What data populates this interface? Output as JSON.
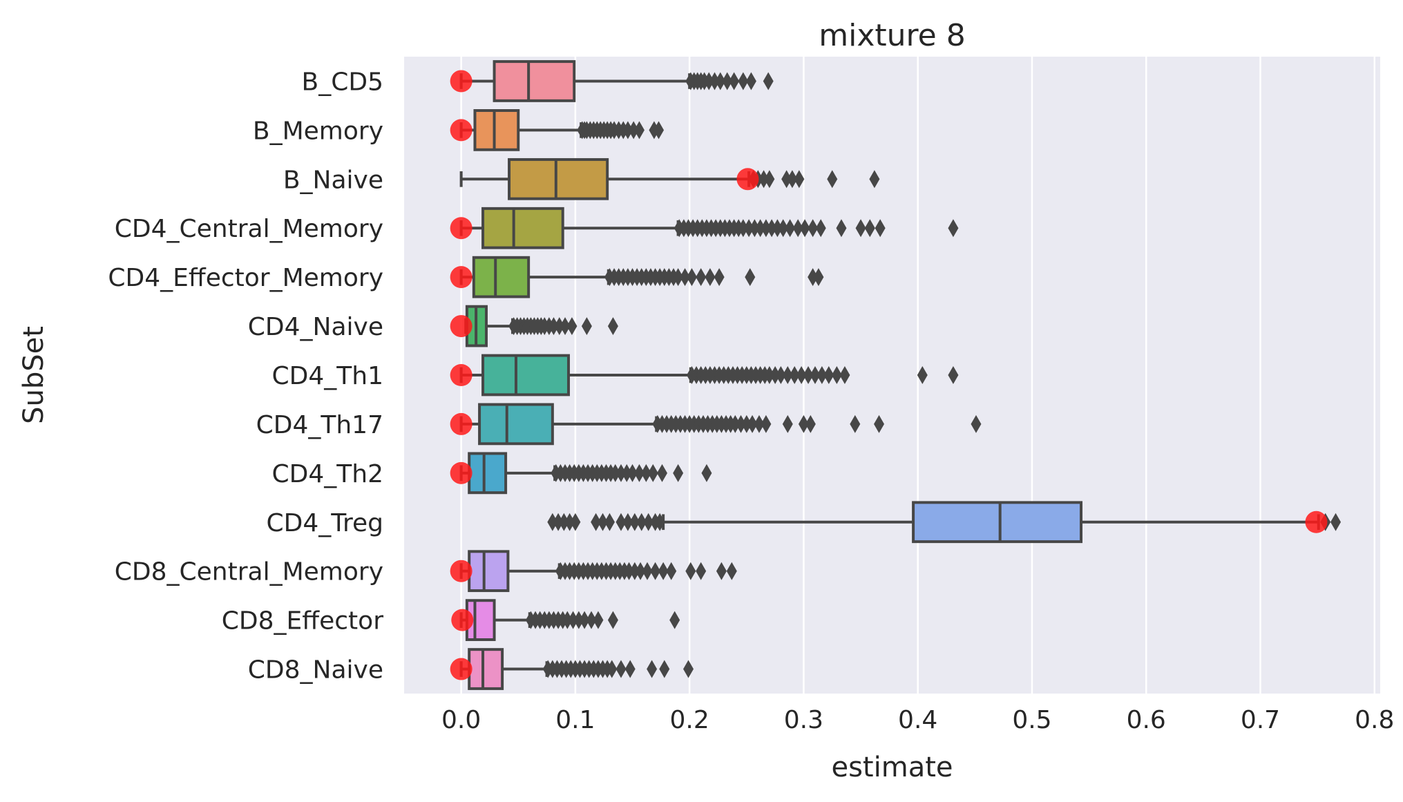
{
  "chart_data": {
    "type": "box",
    "orientation": "horizontal",
    "title": "mixture 8",
    "xlabel": "estimate",
    "ylabel": "SubSet",
    "xlim": [
      -0.05,
      0.805
    ],
    "xticks": [
      0.0,
      0.1,
      0.2,
      0.3,
      0.4,
      0.5,
      0.6,
      0.7,
      0.8
    ],
    "xtick_labels": [
      "0.0",
      "0.1",
      "0.2",
      "0.3",
      "0.4",
      "0.5",
      "0.6",
      "0.7",
      "0.8"
    ],
    "grid": true,
    "background": "#eaeaf2",
    "grid_color": "#ffffff",
    "line_color": "#474747",
    "marker_color": "#ff1a1a",
    "categories": [
      "B_CD5",
      "B_Memory",
      "B_Naive",
      "CD4_Central_Memory",
      "CD4_Effector_Memory",
      "CD4_Naive",
      "CD4_Th1",
      "CD4_Th17",
      "CD4_Th2",
      "CD4_Treg",
      "CD8_Central_Memory",
      "CD8_Effector",
      "CD8_Naive"
    ],
    "boxes": [
      {
        "category": "B_CD5",
        "color": "#f0909d",
        "whisker_low": 0.0,
        "q1": 0.029,
        "median": 0.059,
        "q3": 0.099,
        "whisker_high": 0.2,
        "outliers": [
          0.201,
          0.204,
          0.207,
          0.21,
          0.213,
          0.217,
          0.222,
          0.227,
          0.233,
          0.239,
          0.247,
          0.254,
          0.269
        ],
        "marker": 0.0
      },
      {
        "category": "B_Memory",
        "color": "#e8945b",
        "whisker_low": 0.0,
        "q1": 0.012,
        "median": 0.029,
        "q3": 0.05,
        "whisker_high": 0.105,
        "outliers": [
          0.106,
          0.108,
          0.11,
          0.113,
          0.116,
          0.119,
          0.122,
          0.125,
          0.128,
          0.131,
          0.134,
          0.138,
          0.142,
          0.146,
          0.151,
          0.156,
          0.169,
          0.173
        ],
        "marker": 0.0
      },
      {
        "category": "B_Naive",
        "color": "#c39b46",
        "whisker_low": 0.0,
        "q1": 0.042,
        "median": 0.083,
        "q3": 0.128,
        "whisker_high": 0.252,
        "outliers": [
          0.256,
          0.26,
          0.265,
          0.27,
          0.285,
          0.29,
          0.296,
          0.325,
          0.362
        ],
        "marker": 0.251
      },
      {
        "category": "CD4_Central_Memory",
        "color": "#a5a543",
        "whisker_low": 0.0,
        "q1": 0.019,
        "median": 0.046,
        "q3": 0.089,
        "whisker_high": 0.19,
        "outliers": [
          0.191,
          0.195,
          0.199,
          0.203,
          0.207,
          0.211,
          0.215,
          0.219,
          0.223,
          0.227,
          0.231,
          0.235,
          0.239,
          0.243,
          0.247,
          0.252,
          0.257,
          0.262,
          0.267,
          0.272,
          0.277,
          0.282,
          0.288,
          0.295,
          0.301,
          0.308,
          0.315,
          0.333,
          0.35,
          0.358,
          0.367,
          0.431
        ],
        "marker": 0.0
      },
      {
        "category": "CD4_Effector_Memory",
        "color": "#7cb24a",
        "whisker_low": 0.0,
        "q1": 0.011,
        "median": 0.03,
        "q3": 0.059,
        "whisker_high": 0.129,
        "outliers": [
          0.13,
          0.134,
          0.138,
          0.142,
          0.146,
          0.15,
          0.154,
          0.158,
          0.162,
          0.166,
          0.17,
          0.174,
          0.178,
          0.182,
          0.186,
          0.19,
          0.196,
          0.202,
          0.21,
          0.218,
          0.226,
          0.253,
          0.308,
          0.313
        ],
        "marker": 0.0
      },
      {
        "category": "CD4_Naive",
        "color": "#4bb46b",
        "whisker_low": 0.004,
        "q1": 0.005,
        "median": 0.013,
        "q3": 0.022,
        "whisker_high": 0.045,
        "outliers": [
          0.046,
          0.049,
          0.052,
          0.055,
          0.058,
          0.061,
          0.064,
          0.067,
          0.07,
          0.073,
          0.077,
          0.081,
          0.086,
          0.091,
          0.097,
          0.11,
          0.133
        ],
        "marker": 0.0
      },
      {
        "category": "CD4_Th1",
        "color": "#47b29a",
        "whisker_low": 0.0,
        "q1": 0.019,
        "median": 0.048,
        "q3": 0.094,
        "whisker_high": 0.201,
        "outliers": [
          0.202,
          0.206,
          0.21,
          0.214,
          0.218,
          0.222,
          0.226,
          0.23,
          0.234,
          0.238,
          0.242,
          0.246,
          0.25,
          0.254,
          0.258,
          0.262,
          0.266,
          0.27,
          0.275,
          0.28,
          0.286,
          0.292,
          0.298,
          0.304,
          0.31,
          0.316,
          0.322,
          0.329,
          0.336,
          0.404,
          0.431
        ],
        "marker": 0.0
      },
      {
        "category": "CD4_Th17",
        "color": "#4aafb5",
        "whisker_low": 0.0,
        "q1": 0.016,
        "median": 0.04,
        "q3": 0.08,
        "whisker_high": 0.171,
        "outliers": [
          0.172,
          0.176,
          0.18,
          0.184,
          0.188,
          0.192,
          0.196,
          0.2,
          0.204,
          0.208,
          0.212,
          0.216,
          0.22,
          0.224,
          0.228,
          0.232,
          0.236,
          0.24,
          0.245,
          0.25,
          0.255,
          0.261,
          0.267,
          0.286,
          0.3,
          0.306,
          0.345,
          0.366,
          0.451
        ],
        "marker": 0.0
      },
      {
        "category": "CD4_Th2",
        "color": "#4aa8cc",
        "whisker_low": 0.0,
        "q1": 0.007,
        "median": 0.02,
        "q3": 0.039,
        "whisker_high": 0.082,
        "outliers": [
          0.083,
          0.087,
          0.091,
          0.095,
          0.099,
          0.103,
          0.107,
          0.111,
          0.115,
          0.119,
          0.123,
          0.127,
          0.131,
          0.135,
          0.14,
          0.145,
          0.15,
          0.156,
          0.162,
          0.168,
          0.176,
          0.19,
          0.215
        ],
        "marker": 0.0
      },
      {
        "category": "CD4_Treg",
        "color": "#8aaae8",
        "whisker_low": 0.177,
        "q1": 0.396,
        "median": 0.472,
        "q3": 0.543,
        "whisker_high": 0.751,
        "outliers": [
          0.08,
          0.085,
          0.09,
          0.095,
          0.1,
          0.118,
          0.124,
          0.13,
          0.14,
          0.146,
          0.152,
          0.158,
          0.164,
          0.17,
          0.174,
          0.757,
          0.766
        ],
        "marker": 0.749
      },
      {
        "category": "CD8_Central_Memory",
        "color": "#bba3ef",
        "whisker_low": 0.0,
        "q1": 0.007,
        "median": 0.02,
        "q3": 0.041,
        "whisker_high": 0.086,
        "outliers": [
          0.087,
          0.091,
          0.095,
          0.099,
          0.103,
          0.107,
          0.111,
          0.115,
          0.119,
          0.123,
          0.127,
          0.131,
          0.135,
          0.139,
          0.143,
          0.147,
          0.152,
          0.157,
          0.163,
          0.17,
          0.177,
          0.184,
          0.201,
          0.21,
          0.228,
          0.237
        ],
        "marker": 0.0
      },
      {
        "category": "CD8_Effector",
        "color": "#e58ce6",
        "whisker_low": 0.0,
        "q1": 0.005,
        "median": 0.012,
        "q3": 0.029,
        "whisker_high": 0.06,
        "outliers": [
          0.061,
          0.065,
          0.069,
          0.073,
          0.077,
          0.081,
          0.085,
          0.089,
          0.093,
          0.098,
          0.103,
          0.108,
          0.114,
          0.12,
          0.133,
          0.187
        ],
        "marker": 0.001
      },
      {
        "category": "CD8_Naive",
        "color": "#ec92c6",
        "whisker_low": 0.0,
        "q1": 0.007,
        "median": 0.019,
        "q3": 0.036,
        "whisker_high": 0.075,
        "outliers": [
          0.076,
          0.08,
          0.084,
          0.088,
          0.092,
          0.096,
          0.1,
          0.104,
          0.108,
          0.112,
          0.116,
          0.12,
          0.124,
          0.128,
          0.132,
          0.14,
          0.148,
          0.167,
          0.178,
          0.199
        ],
        "marker": 0.0
      }
    ]
  }
}
